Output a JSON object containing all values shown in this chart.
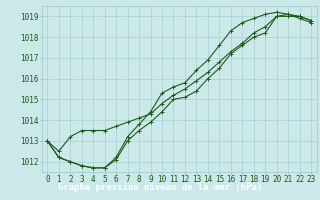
{
  "title": "Graphe pression niveau de la mer (hPa)",
  "xlabel_hours": [
    0,
    1,
    2,
    3,
    4,
    5,
    6,
    7,
    8,
    9,
    10,
    11,
    12,
    13,
    14,
    15,
    16,
    17,
    18,
    19,
    20,
    21,
    22,
    23
  ],
  "line1": [
    1013.0,
    1012.2,
    1012.0,
    1011.8,
    1011.7,
    1011.7,
    1012.1,
    1013.0,
    1013.5,
    1013.9,
    1014.4,
    1015.0,
    1015.1,
    1015.4,
    1016.0,
    1016.5,
    1017.2,
    1017.6,
    1018.0,
    1018.2,
    1019.0,
    1019.0,
    1019.0,
    1018.8
  ],
  "line2": [
    1013.0,
    1012.2,
    1012.0,
    1011.8,
    1011.7,
    1011.7,
    1012.2,
    1013.2,
    1013.8,
    1014.4,
    1015.3,
    1015.6,
    1015.8,
    1016.4,
    1016.9,
    1017.6,
    1018.3,
    1018.7,
    1018.9,
    1019.1,
    1019.2,
    1019.1,
    1018.9,
    1018.7
  ],
  "line3": [
    1013.0,
    1012.5,
    1013.2,
    1013.5,
    1013.5,
    1013.5,
    1013.7,
    1013.9,
    1014.1,
    1014.3,
    1014.8,
    1015.2,
    1015.5,
    1015.9,
    1016.3,
    1016.8,
    1017.3,
    1017.7,
    1018.2,
    1018.5,
    1019.0,
    1019.1,
    1019.0,
    1018.8
  ],
  "bg_color": "#cce8e8",
  "grid_color": "#99cccc",
  "line_color": "#1a5c1a",
  "ylim": [
    1011.5,
    1019.5
  ],
  "yticks": [
    1012,
    1013,
    1014,
    1015,
    1016,
    1017,
    1018,
    1019
  ],
  "title_color": "#1a5c1a",
  "title_bg": "#336633",
  "title_text_color": "#ffffff",
  "label_fontsize": 6.5,
  "tick_fontsize": 5.5,
  "fig_width": 3.2,
  "fig_height": 2.0,
  "dpi": 100
}
